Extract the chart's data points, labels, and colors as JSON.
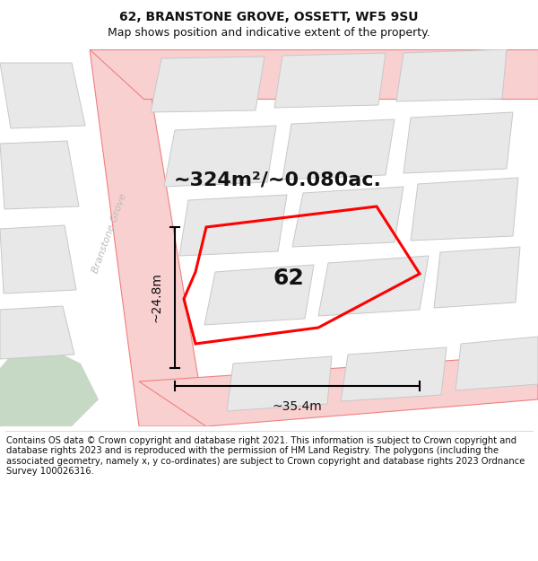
{
  "title": "62, BRANSTONE GROVE, OSSETT, WF5 9SU",
  "subtitle": "Map shows position and indicative extent of the property.",
  "area_text": "~324m²/~0.080ac.",
  "label_62": "62",
  "dim_height": "~24.8m",
  "dim_width": "~35.4m",
  "street_label": "Branstone Grove",
  "footer": "Contains OS data © Crown copyright and database right 2021. This information is subject to Crown copyright and database rights 2023 and is reproduced with the permission of HM Land Registry. The polygons (including the associated geometry, namely x, y co-ordinates) are subject to Crown copyright and database rights 2023 Ordnance Survey 100026316.",
  "bg_color": "#ffffff",
  "road_color": "#f9d0d0",
  "road_edge_color": "#f08080",
  "building_fill": "#e8e8e8",
  "building_edge": "#c8c8c8",
  "highlight_color": "#ff0000",
  "green_fill": "#c5d9c5",
  "title_fontsize": 10,
  "subtitle_fontsize": 9,
  "area_fontsize": 16,
  "label_fontsize": 18,
  "dim_fontsize": 10,
  "street_fontsize": 8,
  "footer_fontsize": 7.2
}
